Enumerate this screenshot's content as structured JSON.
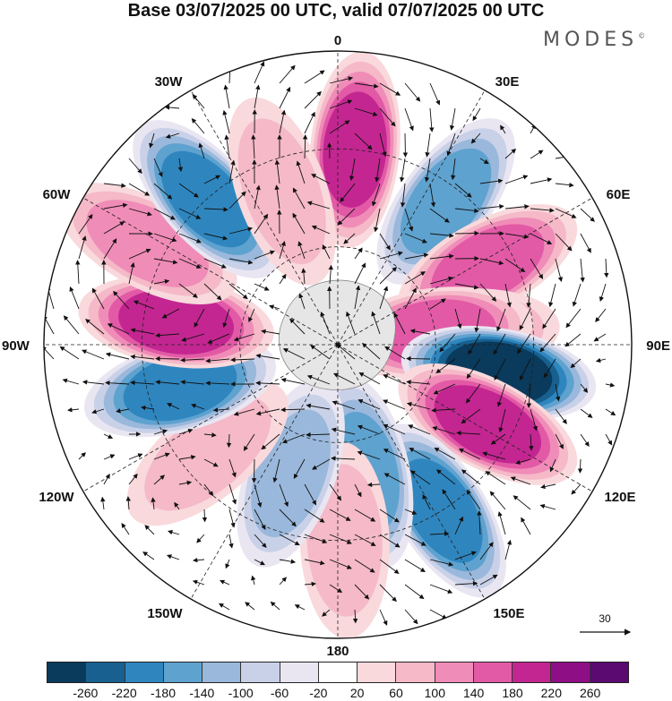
{
  "title": "Base 03/07/2025 00 UTC, valid 07/07/2025 00 UTC",
  "logo": {
    "text": "MODES",
    "mark": "©"
  },
  "longitude_labels": {
    "top": "0",
    "bottom": "180",
    "left": "90W",
    "right": "90E",
    "upper_left_1": "30W",
    "upper_left_2": "60W",
    "upper_right_1": "30E",
    "upper_right_2": "60E",
    "lower_left_1": "120W",
    "lower_left_2": "150W",
    "lower_right_1": "120E",
    "lower_right_2": "150E"
  },
  "vector_reference": {
    "value": "30"
  },
  "colorbar": {
    "colors": [
      "#0a3a5c",
      "#17608f",
      "#2f86bf",
      "#5ea2cf",
      "#9ab8db",
      "#c9d1e8",
      "#e9e6f2",
      "#ffffff",
      "#f9d9dc",
      "#f5b9c8",
      "#f08cb8",
      "#e25aa6",
      "#c32691",
      "#8e0e85",
      "#5a0a70"
    ],
    "tick_labels": [
      "-260",
      "-220",
      "-180",
      "-140",
      "-100",
      "-60",
      "-20",
      "20",
      "60",
      "100",
      "140",
      "180",
      "220",
      "260"
    ]
  },
  "anomaly_centers": [
    {
      "lon": 5,
      "lat": 30,
      "value": 210
    },
    {
      "lon": 37,
      "lat": 35,
      "value": -170
    },
    {
      "lon": 62,
      "lat": 38,
      "value": 160
    },
    {
      "lon": 85,
      "lat": 52,
      "value": 120
    },
    {
      "lon": 83,
      "lat": 60,
      "value": 170
    },
    {
      "lon": 100,
      "lat": 40,
      "value": -260
    },
    {
      "lon": 118,
      "lat": 38,
      "value": 200
    },
    {
      "lon": 148,
      "lat": 30,
      "value": -180
    },
    {
      "lon": 168,
      "lat": 50,
      "value": -140
    },
    {
      "lon": 178,
      "lat": 30,
      "value": 80
    },
    {
      "lon": -160,
      "lat": 48,
      "value": -120
    },
    {
      "lon": -130,
      "lat": 38,
      "value": 90
    },
    {
      "lon": -105,
      "lat": 40,
      "value": -190
    },
    {
      "lon": -82,
      "lat": 40,
      "value": 200
    },
    {
      "lon": -62,
      "lat": 24,
      "value": 120
    },
    {
      "lon": -42,
      "lat": 30,
      "value": -200
    },
    {
      "lon": -20,
      "lat": 40,
      "value": 80
    }
  ]
}
